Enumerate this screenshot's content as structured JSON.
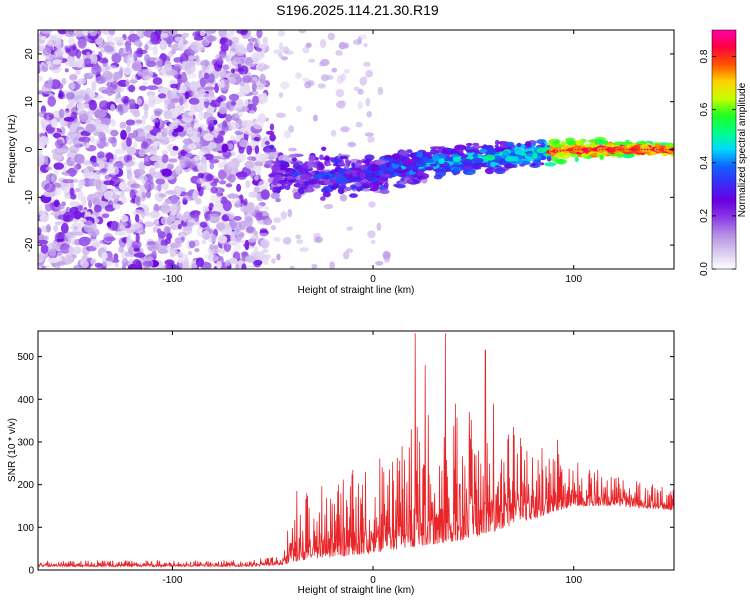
{
  "title": "S196.2025.114.21.30.R19",
  "colors": {
    "snr_line": "#e8262a",
    "frame": "#000000",
    "colormap": [
      "#ffffff",
      "#d9c9ef",
      "#b58fe6",
      "#8a3ce6",
      "#6a00e0",
      "#3a2cf5",
      "#1060ff",
      "#00d8ff",
      "#00ff88",
      "#20ff20",
      "#c8ff00",
      "#ffd000",
      "#ff5000",
      "#ff0040",
      "#ff00aa"
    ]
  },
  "chart_data": [
    {
      "type": "heatmap",
      "xlabel": "Height of straight line (km)",
      "ylabel": "Frequency (Hz)",
      "xlim": [
        -167,
        150
      ],
      "ylim": [
        -25,
        25
      ],
      "xticks": [
        -100,
        0,
        100
      ],
      "yticks": [
        -20,
        -10,
        0,
        10,
        20
      ],
      "colorbar": {
        "label": "Normalized spectral amplitude",
        "range": [
          0,
          0.9
        ],
        "ticks": [
          0.0,
          0.2,
          0.4,
          0.6,
          0.8
        ]
      },
      "features": {
        "noise_region_x": [
          -167,
          -53
        ],
        "signal_region_x": [
          -53,
          150
        ],
        "signal_center_freq": [
          {
            "x": -50,
            "y": -5.5
          },
          {
            "x": -25,
            "y": -5.5
          },
          {
            "x": 0,
            "y": -5
          },
          {
            "x": 25,
            "y": -3
          },
          {
            "x": 50,
            "y": -2
          },
          {
            "x": 75,
            "y": -1
          },
          {
            "x": 100,
            "y": 0
          },
          {
            "x": 150,
            "y": 0
          }
        ],
        "peak_region_x": [
          88,
          150
        ]
      }
    },
    {
      "type": "line",
      "xlabel": "Height of straight line (km)",
      "ylabel": "SNR (10 * v/v)",
      "xlim": [
        -167,
        150
      ],
      "ylim": [
        0,
        560
      ],
      "xticks": [
        -100,
        0,
        100
      ],
      "yticks": [
        0,
        100,
        200,
        300,
        400,
        500
      ],
      "envelope": [
        {
          "x": -167,
          "base": 8,
          "amp": 14
        },
        {
          "x": -60,
          "base": 8,
          "amp": 16
        },
        {
          "x": -45,
          "base": 12,
          "amp": 25
        },
        {
          "x": -40,
          "base": 20,
          "amp": 160
        },
        {
          "x": -20,
          "base": 30,
          "amp": 190
        },
        {
          "x": 0,
          "base": 40,
          "amp": 210
        },
        {
          "x": 15,
          "base": 50,
          "amp": 280
        },
        {
          "x": 30,
          "base": 60,
          "amp": 320
        },
        {
          "x": 45,
          "base": 70,
          "amp": 300
        },
        {
          "x": 60,
          "base": 90,
          "amp": 250
        },
        {
          "x": 80,
          "base": 120,
          "amp": 180
        },
        {
          "x": 100,
          "base": 150,
          "amp": 110
        },
        {
          "x": 120,
          "base": 150,
          "amp": 70
        },
        {
          "x": 150,
          "base": 140,
          "amp": 50
        }
      ],
      "spikes": [
        {
          "x": -38,
          "y": 185
        },
        {
          "x": 19,
          "y": 330
        },
        {
          "x": 21,
          "y": 555
        },
        {
          "x": 26,
          "y": 480
        },
        {
          "x": 36,
          "y": 555
        },
        {
          "x": 41,
          "y": 390
        },
        {
          "x": 48,
          "y": 370
        },
        {
          "x": 56,
          "y": 515
        },
        {
          "x": 60,
          "y": 390
        },
        {
          "x": 70,
          "y": 335
        },
        {
          "x": 92,
          "y": 305
        }
      ]
    }
  ]
}
